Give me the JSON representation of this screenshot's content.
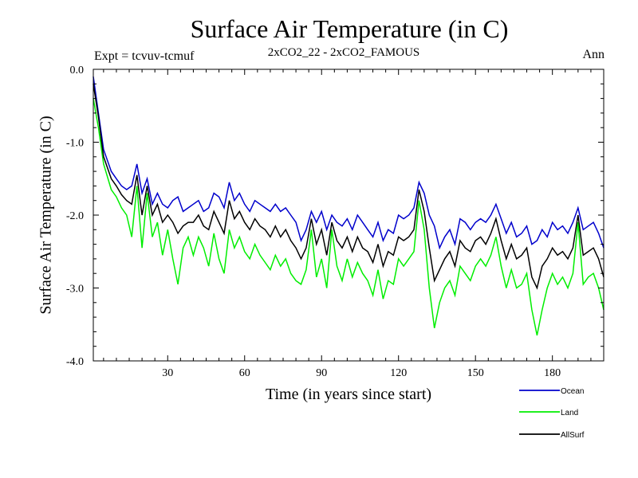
{
  "chart_data": {
    "type": "line",
    "title": "Surface Air Temperature (in C)",
    "subtitle": "2xCO2_22 - 2xCO2_FAMOUS",
    "left_label": "Expt = tcvuv-tcmuf",
    "right_label": "Ann",
    "xlabel": "Time (in years since start)",
    "ylabel": "Surface Air Temperature (in C)",
    "xlim": [
      1,
      200
    ],
    "ylim": [
      -4.0,
      0.0
    ],
    "x_ticks": [
      30,
      60,
      90,
      120,
      150,
      180
    ],
    "y_ticks": [
      0.0,
      -1.0,
      -2.0,
      -3.0,
      -4.0
    ],
    "y_tick_labels": [
      "0.0",
      "-1.0",
      "-2.0",
      "-3.0",
      "-4.0"
    ],
    "grid": false,
    "legend_position": "bottom-right, below plot",
    "series": [
      {
        "name": "Ocean",
        "color": "#0000cc",
        "x": [
          1,
          3,
          5,
          8,
          10,
          12,
          14,
          16,
          18,
          20,
          22,
          24,
          26,
          28,
          30,
          32,
          34,
          36,
          38,
          40,
          42,
          44,
          46,
          48,
          50,
          52,
          54,
          56,
          58,
          60,
          62,
          64,
          66,
          68,
          70,
          72,
          74,
          76,
          78,
          80,
          82,
          84,
          86,
          88,
          90,
          92,
          94,
          96,
          98,
          100,
          102,
          104,
          106,
          108,
          110,
          112,
          114,
          116,
          118,
          120,
          122,
          124,
          126,
          128,
          130,
          132,
          134,
          136,
          138,
          140,
          142,
          144,
          146,
          148,
          150,
          152,
          154,
          156,
          158,
          160,
          162,
          164,
          166,
          168,
          170,
          172,
          174,
          176,
          178,
          180,
          182,
          184,
          186,
          188,
          190,
          192,
          194,
          196,
          198,
          200
        ],
        "y": [
          -0.1,
          -0.6,
          -1.1,
          -1.4,
          -1.5,
          -1.6,
          -1.65,
          -1.6,
          -1.3,
          -1.7,
          -1.5,
          -1.85,
          -1.7,
          -1.85,
          -1.9,
          -1.8,
          -1.75,
          -1.95,
          -1.9,
          -1.85,
          -1.8,
          -1.95,
          -1.9,
          -1.7,
          -1.75,
          -1.9,
          -1.55,
          -1.8,
          -1.7,
          -1.85,
          -1.95,
          -1.8,
          -1.85,
          -1.9,
          -1.95,
          -1.85,
          -1.95,
          -1.9,
          -2.0,
          -2.1,
          -2.35,
          -2.2,
          -1.95,
          -2.1,
          -1.95,
          -2.2,
          -2.0,
          -2.1,
          -2.15,
          -2.05,
          -2.2,
          -2.0,
          -2.1,
          -2.2,
          -2.3,
          -2.1,
          -2.35,
          -2.2,
          -2.25,
          -2.0,
          -2.05,
          -2.0,
          -1.9,
          -1.55,
          -1.7,
          -2.0,
          -2.15,
          -2.45,
          -2.3,
          -2.2,
          -2.4,
          -2.05,
          -2.1,
          -2.2,
          -2.1,
          -2.05,
          -2.1,
          -2.0,
          -1.85,
          -2.05,
          -2.25,
          -2.1,
          -2.3,
          -2.25,
          -2.15,
          -2.4,
          -2.35,
          -2.2,
          -2.3,
          -2.1,
          -2.2,
          -2.15,
          -2.25,
          -2.1,
          -1.9,
          -2.2,
          -2.15,
          -2.1,
          -2.25,
          -2.45
        ]
      },
      {
        "name": "Land",
        "color": "#00ee00",
        "x": [
          1,
          3,
          5,
          8,
          10,
          12,
          14,
          16,
          18,
          20,
          22,
          24,
          26,
          28,
          30,
          32,
          34,
          36,
          38,
          40,
          42,
          44,
          46,
          48,
          50,
          52,
          54,
          56,
          58,
          60,
          62,
          64,
          66,
          68,
          70,
          72,
          74,
          76,
          78,
          80,
          82,
          84,
          86,
          88,
          90,
          92,
          94,
          96,
          98,
          100,
          102,
          104,
          106,
          108,
          110,
          112,
          114,
          116,
          118,
          120,
          122,
          124,
          126,
          128,
          130,
          132,
          134,
          136,
          138,
          140,
          142,
          144,
          146,
          148,
          150,
          152,
          154,
          156,
          158,
          160,
          162,
          164,
          166,
          168,
          170,
          172,
          174,
          176,
          178,
          180,
          182,
          184,
          186,
          188,
          190,
          192,
          194,
          196,
          198,
          200
        ],
        "y": [
          -0.4,
          -0.8,
          -1.3,
          -1.65,
          -1.75,
          -1.9,
          -2.0,
          -2.3,
          -1.6,
          -2.45,
          -1.7,
          -2.3,
          -2.1,
          -2.55,
          -2.2,
          -2.6,
          -2.95,
          -2.45,
          -2.3,
          -2.55,
          -2.3,
          -2.45,
          -2.7,
          -2.25,
          -2.6,
          -2.8,
          -2.2,
          -2.45,
          -2.3,
          -2.5,
          -2.6,
          -2.4,
          -2.55,
          -2.65,
          -2.75,
          -2.55,
          -2.7,
          -2.6,
          -2.8,
          -2.9,
          -2.95,
          -2.75,
          -2.2,
          -2.85,
          -2.6,
          -3.0,
          -2.2,
          -2.7,
          -2.9,
          -2.6,
          -2.85,
          -2.65,
          -2.8,
          -2.9,
          -3.1,
          -2.75,
          -3.15,
          -2.9,
          -2.95,
          -2.6,
          -2.7,
          -2.6,
          -2.5,
          -1.8,
          -2.2,
          -3.0,
          -3.55,
          -3.2,
          -3.0,
          -2.9,
          -3.1,
          -2.7,
          -2.8,
          -2.9,
          -2.7,
          -2.6,
          -2.7,
          -2.55,
          -2.3,
          -2.7,
          -3.0,
          -2.75,
          -3.0,
          -2.95,
          -2.8,
          -3.3,
          -3.65,
          -3.3,
          -3.0,
          -2.8,
          -2.95,
          -2.85,
          -3.0,
          -2.8,
          -2.1,
          -2.95,
          -2.85,
          -2.8,
          -3.0,
          -3.3
        ]
      },
      {
        "name": "AllSurf",
        "color": "#000000",
        "x": [
          1,
          3,
          5,
          8,
          10,
          12,
          14,
          16,
          18,
          20,
          22,
          24,
          26,
          28,
          30,
          32,
          34,
          36,
          38,
          40,
          42,
          44,
          46,
          48,
          50,
          52,
          54,
          56,
          58,
          60,
          62,
          64,
          66,
          68,
          70,
          72,
          74,
          76,
          78,
          80,
          82,
          84,
          86,
          88,
          90,
          92,
          94,
          96,
          98,
          100,
          102,
          104,
          106,
          108,
          110,
          112,
          114,
          116,
          118,
          120,
          122,
          124,
          126,
          128,
          130,
          132,
          134,
          136,
          138,
          140,
          142,
          144,
          146,
          148,
          150,
          152,
          154,
          156,
          158,
          160,
          162,
          164,
          166,
          168,
          170,
          172,
          174,
          176,
          178,
          180,
          182,
          184,
          186,
          188,
          190,
          192,
          194,
          196,
          198,
          200
        ],
        "y": [
          -0.2,
          -0.65,
          -1.2,
          -1.5,
          -1.6,
          -1.72,
          -1.8,
          -1.85,
          -1.45,
          -2.0,
          -1.6,
          -2.0,
          -1.85,
          -2.1,
          -2.0,
          -2.1,
          -2.25,
          -2.15,
          -2.1,
          -2.1,
          -2.0,
          -2.15,
          -2.2,
          -1.95,
          -2.1,
          -2.25,
          -1.8,
          -2.05,
          -1.95,
          -2.1,
          -2.2,
          -2.05,
          -2.15,
          -2.2,
          -2.3,
          -2.15,
          -2.3,
          -2.2,
          -2.35,
          -2.45,
          -2.6,
          -2.45,
          -2.05,
          -2.4,
          -2.2,
          -2.55,
          -2.1,
          -2.35,
          -2.45,
          -2.3,
          -2.5,
          -2.3,
          -2.45,
          -2.5,
          -2.65,
          -2.4,
          -2.7,
          -2.5,
          -2.55,
          -2.3,
          -2.35,
          -2.3,
          -2.2,
          -1.65,
          -1.95,
          -2.45,
          -2.9,
          -2.75,
          -2.6,
          -2.5,
          -2.7,
          -2.35,
          -2.45,
          -2.5,
          -2.35,
          -2.3,
          -2.4,
          -2.25,
          -2.05,
          -2.35,
          -2.6,
          -2.4,
          -2.6,
          -2.55,
          -2.45,
          -2.85,
          -3.0,
          -2.7,
          -2.6,
          -2.45,
          -2.55,
          -2.5,
          -2.6,
          -2.45,
          -2.0,
          -2.55,
          -2.5,
          -2.45,
          -2.6,
          -2.85
        ]
      }
    ]
  }
}
